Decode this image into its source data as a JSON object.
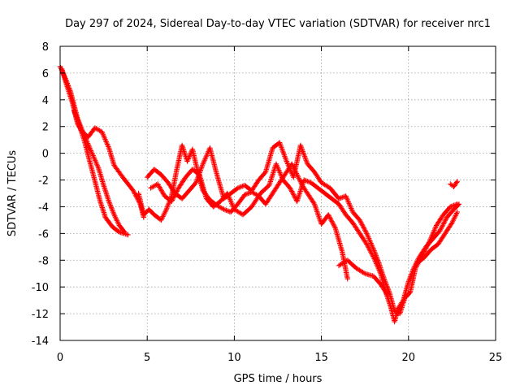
{
  "chart_data": {
    "type": "scatter",
    "title": "Day 297 of 2024, Sidereal Day-to-day VTEC variation (SDTVAR) for receiver nrc1",
    "xlabel": "GPS time / hours",
    "ylabel": "SDTVAR / TECUs",
    "xlim": [
      0,
      25
    ],
    "ylim": [
      -14,
      8
    ],
    "xticks": [
      0,
      5,
      10,
      15,
      20,
      25
    ],
    "yticks": [
      -14,
      -12,
      -10,
      -8,
      -6,
      -4,
      -2,
      0,
      2,
      4,
      6,
      8
    ],
    "grid": true,
    "marker": "+",
    "color": "#ff0000",
    "series": [
      {
        "name": "trace-1",
        "points": [
          [
            0.0,
            6.5
          ],
          [
            0.3,
            5.6
          ],
          [
            0.6,
            4.6
          ],
          [
            0.8,
            3.6
          ],
          [
            1.0,
            2.6
          ],
          [
            1.3,
            1.6
          ],
          [
            1.6,
            1.2
          ],
          [
            2.0,
            1.9
          ],
          [
            2.4,
            1.6
          ],
          [
            2.8,
            0.4
          ],
          [
            3.1,
            -0.9
          ],
          [
            3.6,
            -1.8
          ],
          [
            4.2,
            -2.8
          ],
          [
            4.6,
            -3.8
          ],
          [
            4.8,
            -4.8
          ]
        ]
      },
      {
        "name": "trace-2",
        "points": [
          [
            0.1,
            6.3
          ],
          [
            0.4,
            5.0
          ],
          [
            0.7,
            3.8
          ],
          [
            1.0,
            2.2
          ],
          [
            1.4,
            1.3
          ],
          [
            1.8,
            0.1
          ],
          [
            2.2,
            -1.1
          ],
          [
            2.5,
            -2.4
          ],
          [
            2.8,
            -3.6
          ],
          [
            3.1,
            -4.6
          ],
          [
            3.4,
            -5.4
          ],
          [
            3.7,
            -5.9
          ]
        ]
      },
      {
        "name": "trace-3",
        "points": [
          [
            0.8,
            3.2
          ],
          [
            1.1,
            2.1
          ],
          [
            1.4,
            0.9
          ],
          [
            1.7,
            -0.6
          ],
          [
            2.0,
            -2.1
          ],
          [
            2.3,
            -3.6
          ],
          [
            2.6,
            -4.8
          ],
          [
            3.0,
            -5.5
          ],
          [
            3.4,
            -5.9
          ],
          [
            3.9,
            -6.1
          ]
        ]
      },
      {
        "name": "trace-4",
        "points": [
          [
            4.5,
            -3.0
          ],
          [
            4.8,
            -4.6
          ],
          [
            5.1,
            -4.2
          ],
          [
            5.4,
            -4.6
          ],
          [
            5.8,
            -5.0
          ],
          [
            6.1,
            -4.2
          ],
          [
            6.4,
            -3.2
          ],
          [
            6.7,
            -1.2
          ],
          [
            7.0,
            0.6
          ],
          [
            7.3,
            -0.6
          ],
          [
            7.6,
            0.3
          ],
          [
            7.9,
            -1.4
          ],
          [
            8.2,
            -2.8
          ],
          [
            8.6,
            -3.5
          ],
          [
            9.0,
            -3.9
          ],
          [
            9.4,
            -4.2
          ],
          [
            9.8,
            -4.4
          ],
          [
            10.2,
            -3.8
          ],
          [
            10.6,
            -3.1
          ],
          [
            11.0,
            -2.9
          ],
          [
            11.4,
            -3.2
          ],
          [
            11.8,
            -3.8
          ],
          [
            12.2,
            -3.0
          ],
          [
            12.6,
            -2.2
          ],
          [
            13.0,
            -1.4
          ],
          [
            13.3,
            -0.8
          ],
          [
            13.6,
            -1.6
          ],
          [
            13.9,
            -2.4
          ],
          [
            14.2,
            -3.0
          ],
          [
            14.6,
            -3.8
          ],
          [
            15.0,
            -5.3
          ],
          [
            15.4,
            -4.6
          ],
          [
            15.8,
            -5.6
          ],
          [
            16.2,
            -7.4
          ],
          [
            16.5,
            -9.4
          ]
        ]
      },
      {
        "name": "trace-5",
        "points": [
          [
            5.2,
            -2.6
          ],
          [
            5.6,
            -2.3
          ],
          [
            6.0,
            -3.2
          ],
          [
            6.4,
            -3.6
          ],
          [
            6.8,
            -2.6
          ],
          [
            7.2,
            -1.8
          ],
          [
            7.6,
            -1.2
          ],
          [
            8.0,
            -1.6
          ],
          [
            8.4,
            -3.4
          ],
          [
            8.8,
            -4.0
          ],
          [
            9.2,
            -3.6
          ],
          [
            9.6,
            -3.0
          ],
          [
            10.0,
            -4.2
          ],
          [
            10.5,
            -4.6
          ],
          [
            11.0,
            -4.0
          ],
          [
            11.5,
            -3.0
          ],
          [
            12.0,
            -2.4
          ],
          [
            12.4,
            -0.8
          ],
          [
            12.8,
            -2.0
          ],
          [
            13.2,
            -2.6
          ],
          [
            13.6,
            -3.6
          ],
          [
            14.0,
            -2.0
          ],
          [
            14.4,
            -2.2
          ],
          [
            14.8,
            -2.6
          ],
          [
            15.2,
            -3.0
          ],
          [
            15.6,
            -3.4
          ],
          [
            16.0,
            -3.8
          ],
          [
            16.4,
            -4.6
          ],
          [
            16.8,
            -5.2
          ],
          [
            17.2,
            -6.0
          ],
          [
            17.6,
            -6.8
          ],
          [
            18.0,
            -7.8
          ],
          [
            18.4,
            -9.0
          ],
          [
            18.7,
            -10.4
          ],
          [
            19.0,
            -11.6
          ],
          [
            19.2,
            -12.6
          ],
          [
            19.4,
            -11.6
          ],
          [
            19.7,
            -11.0
          ],
          [
            20.0,
            -9.6
          ],
          [
            20.3,
            -8.6
          ],
          [
            20.6,
            -7.8
          ],
          [
            21.0,
            -7.0
          ],
          [
            21.4,
            -6.4
          ],
          [
            21.8,
            -5.8
          ],
          [
            22.2,
            -4.8
          ],
          [
            22.6,
            -4.2
          ],
          [
            22.9,
            -3.8
          ]
        ]
      },
      {
        "name": "trace-6",
        "points": [
          [
            5.0,
            -1.8
          ],
          [
            5.4,
            -1.2
          ],
          [
            5.8,
            -1.6
          ],
          [
            6.2,
            -2.2
          ],
          [
            6.6,
            -3.0
          ],
          [
            7.0,
            -3.4
          ],
          [
            7.4,
            -2.8
          ],
          [
            7.8,
            -2.2
          ],
          [
            8.2,
            -0.8
          ],
          [
            8.6,
            0.4
          ],
          [
            9.0,
            -1.6
          ],
          [
            9.4,
            -3.4
          ],
          [
            9.8,
            -3.0
          ],
          [
            10.2,
            -2.6
          ],
          [
            10.6,
            -2.4
          ],
          [
            11.0,
            -2.8
          ],
          [
            11.4,
            -2.0
          ],
          [
            11.8,
            -1.4
          ],
          [
            12.2,
            0.4
          ],
          [
            12.6,
            0.8
          ],
          [
            13.0,
            -0.6
          ],
          [
            13.4,
            -1.8
          ],
          [
            13.8,
            0.6
          ],
          [
            14.2,
            -0.8
          ],
          [
            14.6,
            -1.4
          ],
          [
            15.0,
            -2.2
          ],
          [
            15.5,
            -2.6
          ],
          [
            16.0,
            -3.4
          ],
          [
            16.4,
            -3.2
          ],
          [
            16.8,
            -4.4
          ],
          [
            17.2,
            -5.0
          ],
          [
            17.6,
            -6.0
          ],
          [
            18.0,
            -7.2
          ],
          [
            18.3,
            -8.2
          ],
          [
            18.6,
            -9.4
          ],
          [
            18.9,
            -10.4
          ],
          [
            19.2,
            -11.8
          ],
          [
            19.5,
            -12.0
          ],
          [
            19.8,
            -10.8
          ],
          [
            20.1,
            -10.4
          ],
          [
            20.4,
            -8.6
          ],
          [
            20.8,
            -7.6
          ],
          [
            21.2,
            -6.6
          ],
          [
            21.6,
            -5.4
          ],
          [
            22.0,
            -4.6
          ],
          [
            22.4,
            -4.0
          ],
          [
            22.8,
            -3.8
          ]
        ]
      },
      {
        "name": "trace-7",
        "points": [
          [
            16.0,
            -8.4
          ],
          [
            16.5,
            -8.0
          ],
          [
            17.0,
            -8.6
          ],
          [
            17.5,
            -9.0
          ],
          [
            18.0,
            -9.2
          ],
          [
            18.4,
            -9.8
          ],
          [
            18.8,
            -10.6
          ]
        ]
      },
      {
        "name": "trace-8",
        "points": [
          [
            22.4,
            -2.3
          ],
          [
            22.6,
            -2.5
          ],
          [
            22.8,
            -2.1
          ]
        ]
      },
      {
        "name": "trace-9",
        "points": [
          [
            20.5,
            -8.2
          ],
          [
            20.9,
            -7.8
          ],
          [
            21.3,
            -7.2
          ],
          [
            21.7,
            -6.8
          ],
          [
            22.1,
            -6.0
          ],
          [
            22.5,
            -5.2
          ],
          [
            22.8,
            -4.4
          ]
        ]
      }
    ]
  }
}
